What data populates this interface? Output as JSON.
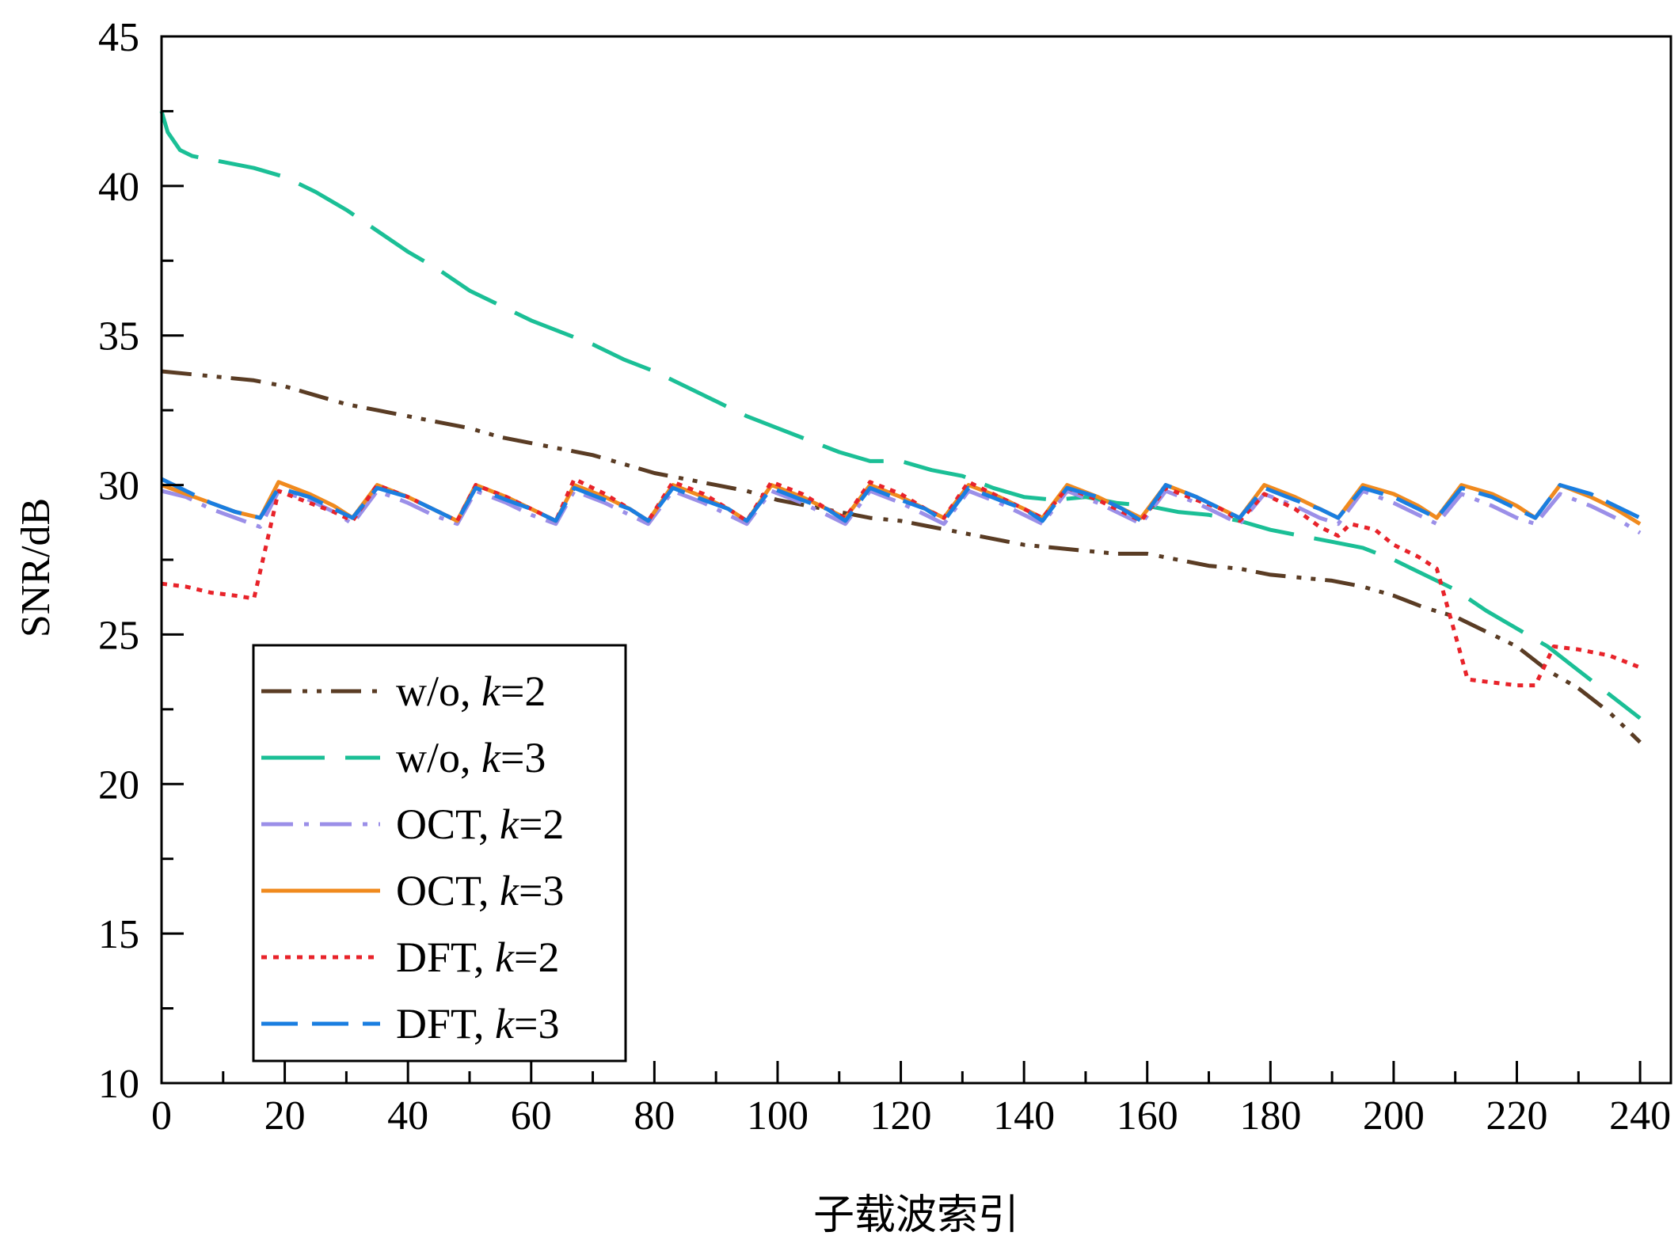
{
  "chart_data": {
    "type": "line",
    "xlabel": "子载波索引",
    "ylabel": "SNR/dB",
    "xlim": [
      0,
      245
    ],
    "ylim": [
      10,
      45
    ],
    "xticks": [
      0,
      20,
      40,
      60,
      80,
      100,
      120,
      140,
      160,
      180,
      200,
      220,
      240
    ],
    "yticks": [
      10,
      15,
      20,
      25,
      30,
      35,
      40,
      45
    ],
    "grid": false,
    "legend_position": "bottom-left",
    "series": [
      {
        "name": "w/o, ",
        "k_label": "k",
        "k_value": "=2",
        "color": "#5a3c24",
        "dash": "dashdotdot",
        "x": [
          0,
          5,
          10,
          15,
          20,
          25,
          30,
          35,
          40,
          45,
          50,
          55,
          60,
          65,
          70,
          75,
          80,
          85,
          90,
          95,
          100,
          105,
          110,
          115,
          120,
          125,
          130,
          135,
          140,
          145,
          150,
          155,
          160,
          165,
          170,
          175,
          180,
          185,
          190,
          195,
          200,
          205,
          210,
          215,
          220,
          225,
          230,
          235,
          240
        ],
        "y": [
          33.8,
          33.7,
          33.6,
          33.5,
          33.3,
          33.0,
          32.7,
          32.5,
          32.3,
          32.1,
          31.9,
          31.6,
          31.4,
          31.2,
          31.0,
          30.7,
          30.4,
          30.2,
          30.0,
          29.8,
          29.5,
          29.3,
          29.1,
          28.9,
          28.8,
          28.6,
          28.4,
          28.2,
          28.0,
          27.9,
          27.8,
          27.7,
          27.7,
          27.5,
          27.3,
          27.2,
          27.0,
          26.9,
          26.8,
          26.6,
          26.3,
          25.9,
          25.6,
          25.1,
          24.6,
          23.8,
          23.2,
          22.4,
          21.4
        ]
      },
      {
        "name": "w/o, ",
        "k_label": "k",
        "k_value": "=3",
        "color": "#1bbf96",
        "dash": "longdash",
        "x": [
          0,
          1,
          3,
          5,
          10,
          15,
          20,
          25,
          30,
          35,
          40,
          45,
          50,
          55,
          60,
          65,
          70,
          75,
          80,
          85,
          90,
          95,
          100,
          105,
          110,
          115,
          120,
          125,
          130,
          135,
          140,
          145,
          150,
          155,
          160,
          165,
          170,
          175,
          180,
          185,
          190,
          195,
          200,
          205,
          210,
          215,
          220,
          225,
          230,
          235,
          240
        ],
        "y": [
          42.5,
          41.8,
          41.2,
          41.0,
          40.8,
          40.6,
          40.3,
          39.8,
          39.2,
          38.5,
          37.8,
          37.2,
          36.5,
          36.0,
          35.5,
          35.1,
          34.7,
          34.2,
          33.8,
          33.3,
          32.8,
          32.3,
          31.9,
          31.5,
          31.1,
          30.8,
          30.8,
          30.5,
          30.3,
          29.9,
          29.6,
          29.5,
          29.6,
          29.4,
          29.3,
          29.1,
          29.0,
          28.8,
          28.5,
          28.3,
          28.1,
          27.9,
          27.5,
          27.0,
          26.5,
          25.8,
          25.2,
          24.6,
          23.8,
          23.0,
          22.2
        ]
      },
      {
        "name": "OCT, ",
        "k_label": "k",
        "k_value": "=2",
        "color": "#9b8fe8",
        "dash": "dashdot",
        "x": [
          0,
          4,
          8,
          12,
          16,
          19,
          24,
          28,
          31,
          35,
          40,
          44,
          48,
          51,
          56,
          60,
          64,
          67,
          72,
          76,
          79,
          83,
          88,
          92,
          95,
          99,
          104,
          108,
          111,
          115,
          120,
          124,
          127,
          131,
          136,
          140,
          143,
          147,
          152,
          156,
          159,
          163,
          168,
          172,
          175,
          179,
          184,
          188,
          191,
          195,
          200,
          204,
          207,
          211,
          216,
          220,
          223,
          227,
          232,
          236,
          240
        ],
        "y": [
          29.8,
          29.6,
          29.2,
          28.9,
          28.6,
          29.8,
          29.5,
          29.1,
          28.7,
          29.8,
          29.4,
          29.0,
          28.7,
          29.8,
          29.4,
          29.0,
          28.7,
          29.8,
          29.4,
          29.0,
          28.7,
          29.8,
          29.4,
          29.0,
          28.7,
          29.8,
          29.4,
          29.0,
          28.7,
          29.8,
          29.4,
          29.0,
          28.7,
          29.8,
          29.4,
          29.0,
          28.7,
          29.8,
          29.4,
          29.0,
          28.7,
          29.8,
          29.4,
          29.0,
          28.7,
          29.7,
          29.3,
          28.9,
          28.7,
          29.8,
          29.4,
          29.0,
          28.7,
          29.7,
          29.3,
          28.9,
          28.7,
          29.7,
          29.3,
          28.9,
          28.4
        ]
      },
      {
        "name": "OCT, ",
        "k_label": "k",
        "k_value": "=3",
        "color": "#f08a1e",
        "dash": "solid",
        "x": [
          0,
          4,
          8,
          12,
          16,
          19,
          24,
          28,
          31,
          35,
          40,
          44,
          48,
          51,
          56,
          60,
          64,
          67,
          72,
          76,
          79,
          83,
          88,
          92,
          95,
          99,
          104,
          108,
          111,
          115,
          120,
          124,
          127,
          131,
          136,
          140,
          143,
          147,
          152,
          156,
          159,
          163,
          168,
          172,
          175,
          179,
          184,
          188,
          191,
          195,
          200,
          204,
          207,
          211,
          216,
          220,
          223,
          227,
          232,
          236,
          240
        ],
        "y": [
          30.0,
          29.7,
          29.4,
          29.1,
          28.9,
          30.1,
          29.7,
          29.3,
          28.9,
          30.0,
          29.6,
          29.2,
          28.8,
          30.0,
          29.6,
          29.2,
          28.8,
          30.0,
          29.6,
          29.2,
          28.8,
          30.0,
          29.6,
          29.2,
          28.8,
          30.0,
          29.6,
          29.2,
          28.9,
          30.0,
          29.6,
          29.2,
          28.9,
          30.0,
          29.6,
          29.2,
          28.9,
          30.0,
          29.6,
          29.2,
          28.9,
          30.0,
          29.6,
          29.2,
          28.9,
          30.0,
          29.6,
          29.2,
          28.9,
          30.0,
          29.7,
          29.3,
          28.9,
          30.0,
          29.7,
          29.3,
          28.9,
          30.0,
          29.6,
          29.2,
          28.7
        ]
      },
      {
        "name": "DFT, ",
        "k_label": "k",
        "k_value": "=2",
        "color": "#e8232a",
        "dash": "dotted",
        "x": [
          0,
          4,
          8,
          12,
          15,
          17,
          19,
          24,
          28,
          31,
          35,
          40,
          44,
          48,
          51,
          56,
          60,
          64,
          67,
          72,
          76,
          79,
          83,
          88,
          92,
          95,
          99,
          104,
          108,
          111,
          115,
          120,
          124,
          127,
          131,
          136,
          140,
          143,
          147,
          152,
          156,
          159,
          163,
          168,
          172,
          175,
          179,
          184,
          188,
          191,
          193,
          197,
          200,
          204,
          207,
          210,
          212,
          216,
          220,
          223,
          226,
          230,
          235,
          240
        ],
        "y": [
          26.7,
          26.6,
          26.4,
          26.3,
          26.2,
          28.0,
          29.8,
          29.4,
          29.1,
          28.8,
          30.0,
          29.6,
          29.2,
          28.8,
          30.0,
          29.6,
          29.2,
          28.8,
          30.2,
          29.7,
          29.2,
          28.8,
          30.1,
          29.7,
          29.2,
          28.8,
          30.1,
          29.7,
          29.2,
          28.9,
          30.1,
          29.7,
          29.2,
          28.9,
          30.1,
          29.6,
          29.2,
          28.9,
          29.9,
          29.5,
          29.1,
          28.8,
          29.9,
          29.5,
          29.2,
          28.8,
          29.7,
          29.2,
          28.6,
          28.3,
          28.7,
          28.5,
          28.0,
          27.6,
          27.2,
          25.0,
          23.5,
          23.4,
          23.3,
          23.3,
          24.6,
          24.5,
          24.3,
          23.9
        ]
      },
      {
        "name": "DFT, ",
        "k_label": "k",
        "k_value": "=3",
        "color": "#1a7ee0",
        "dash": "dashed",
        "x": [
          0,
          4,
          8,
          12,
          16,
          19,
          24,
          28,
          31,
          35,
          40,
          44,
          48,
          51,
          56,
          60,
          64,
          67,
          72,
          76,
          79,
          83,
          88,
          92,
          95,
          99,
          104,
          108,
          111,
          115,
          120,
          124,
          127,
          131,
          136,
          140,
          143,
          147,
          152,
          156,
          159,
          163,
          168,
          172,
          175,
          179,
          184,
          188,
          191,
          195,
          200,
          204,
          207,
          211,
          216,
          220,
          223,
          227,
          232,
          236,
          240
        ],
        "y": [
          30.2,
          29.8,
          29.4,
          29.1,
          28.9,
          29.9,
          29.6,
          29.2,
          28.9,
          29.9,
          29.6,
          29.2,
          28.8,
          29.9,
          29.5,
          29.2,
          28.8,
          29.9,
          29.5,
          29.2,
          28.8,
          29.9,
          29.5,
          29.2,
          28.8,
          29.9,
          29.5,
          29.2,
          28.8,
          29.9,
          29.5,
          29.2,
          28.8,
          29.9,
          29.5,
          29.2,
          28.8,
          29.9,
          29.6,
          29.2,
          28.8,
          30.0,
          29.6,
          29.2,
          28.9,
          29.9,
          29.5,
          29.2,
          28.9,
          29.9,
          29.6,
          29.2,
          28.9,
          29.9,
          29.6,
          29.2,
          28.9,
          30.0,
          29.7,
          29.3,
          28.9
        ]
      }
    ]
  }
}
